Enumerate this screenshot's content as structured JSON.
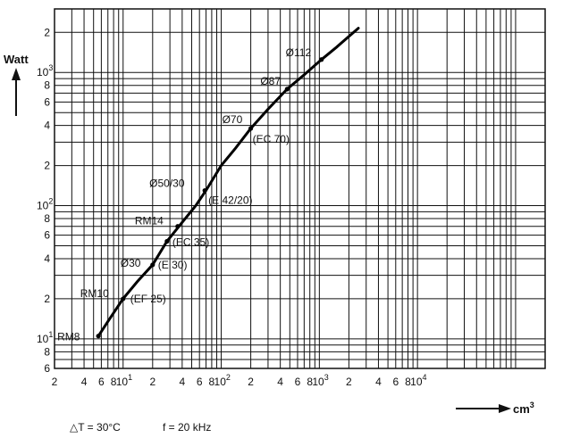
{
  "chart_data": {
    "type": "line",
    "title": "",
    "xlabel": "cm",
    "xlabel_superscript": "3",
    "ylabel": "Watt",
    "xscale": "log",
    "yscale": "log",
    "xlim": [
      2,
      200000
    ],
    "ylim": [
      6,
      3000
    ],
    "grid": true,
    "x_ticks": [
      {
        "v": 2,
        "t": "2"
      },
      {
        "v": 4,
        "t": "4"
      },
      {
        "v": 6,
        "t": "6"
      },
      {
        "v": 8,
        "t": "8"
      },
      {
        "v": 10,
        "t": "10",
        "sup": "1"
      },
      {
        "v": 20,
        "t": "2"
      },
      {
        "v": 40,
        "t": "4"
      },
      {
        "v": 60,
        "t": "6"
      },
      {
        "v": 80,
        "t": "8"
      },
      {
        "v": 100,
        "t": "10",
        "sup": "2"
      },
      {
        "v": 200,
        "t": "2"
      },
      {
        "v": 400,
        "t": "4"
      },
      {
        "v": 600,
        "t": "6"
      },
      {
        "v": 800,
        "t": "8"
      },
      {
        "v": 1000,
        "t": "10",
        "sup": "3"
      },
      {
        "v": 2000,
        "t": "2"
      },
      {
        "v": 4000,
        "t": "4"
      },
      {
        "v": 6000,
        "t": "6"
      },
      {
        "v": 8000,
        "t": "8"
      },
      {
        "v": 10000,
        "t": "10",
        "sup": "4"
      }
    ],
    "y_ticks": [
      {
        "v": 6,
        "t": "6"
      },
      {
        "v": 8,
        "t": "8"
      },
      {
        "v": 10,
        "t": "10",
        "sup": "1"
      },
      {
        "v": 20,
        "t": "2"
      },
      {
        "v": 40,
        "t": "4"
      },
      {
        "v": 60,
        "t": "6"
      },
      {
        "v": 80,
        "t": "8"
      },
      {
        "v": 100,
        "t": "10",
        "sup": "2"
      },
      {
        "v": 200,
        "t": "2"
      },
      {
        "v": 400,
        "t": "4"
      },
      {
        "v": 600,
        "t": "6"
      },
      {
        "v": 800,
        "t": "8"
      },
      {
        "v": 1000,
        "t": "10",
        "sup": "3"
      },
      {
        "v": 2000,
        "t": "2"
      }
    ],
    "series": [
      {
        "x": [
          5.6,
          7,
          10,
          14,
          20,
          28,
          40,
          55,
          70,
          100,
          140,
          200,
          300,
          470,
          700,
          1050,
          1500,
          2500
        ],
        "y": [
          10.5,
          13.5,
          20,
          27,
          36,
          54,
          75,
          100,
          130,
          200,
          270,
          380,
          530,
          750,
          960,
          1250,
          1550,
          2150
        ]
      }
    ],
    "points": [
      {
        "label": "RM8",
        "x": 5.6,
        "y": 10.5
      },
      {
        "label": "RM10",
        "label2": "(EF 25)",
        "x": 10,
        "y": 20
      },
      {
        "label": "Ø30",
        "label2": "(E 30)",
        "x": 20,
        "y": 36
      },
      {
        "label": "(EC 35)",
        "x": 28,
        "y": 54
      },
      {
        "label": "RM14",
        "x": 36,
        "y": 70
      },
      {
        "label": "Ø50/30",
        "label2": "(E 42/20)",
        "x": 68,
        "y": 130
      },
      {
        "label": "Ø70",
        "label2": "(EC 70)",
        "x": 200,
        "y": 380
      },
      {
        "label": "Ø87",
        "x": 470,
        "y": 750
      },
      {
        "label": "Ø112",
        "x": 1050,
        "y": 1250
      }
    ],
    "annotations": {
      "delta_t": "△T = 30°C",
      "freq": "f = 20 kHz"
    }
  }
}
